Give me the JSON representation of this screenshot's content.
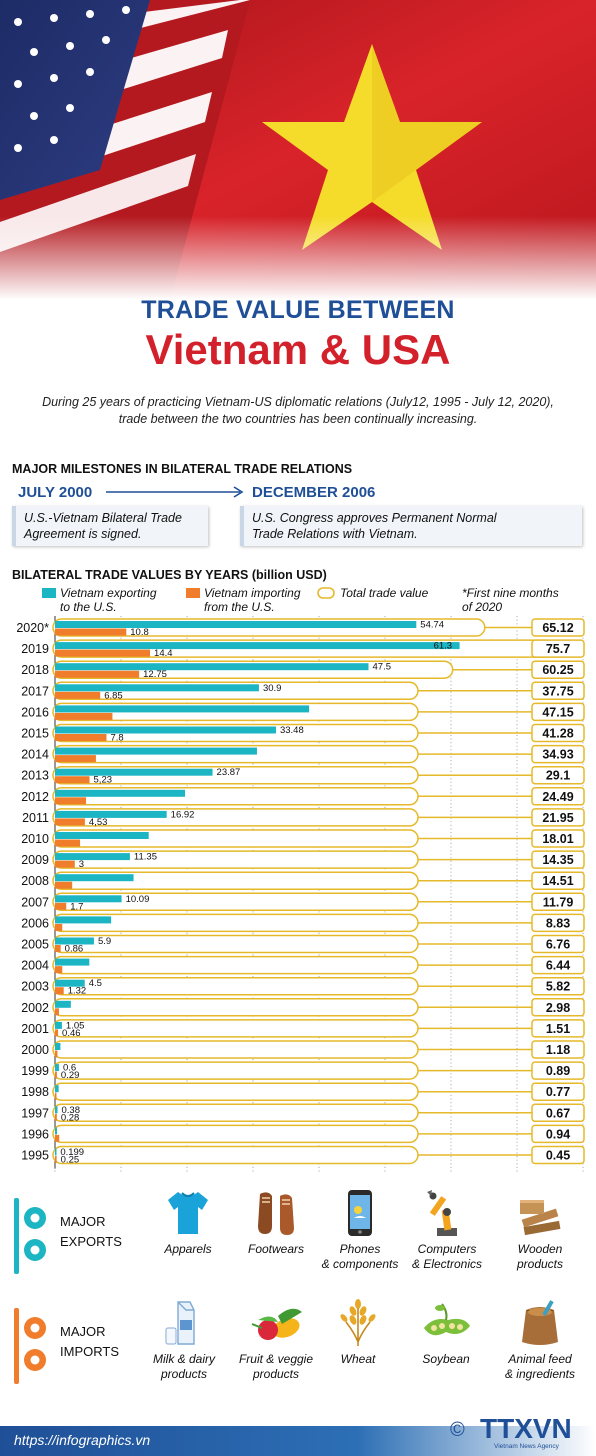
{
  "title": {
    "top": "TRADE VALUE BETWEEN",
    "main": "Vietnam & USA"
  },
  "intro": "During 25 years of practicing Vietnam-US diplomatic relations (July12, 1995 - July 12, 2020), trade between the two countries has been continually increasing.",
  "milestones": {
    "heading": "MAJOR MILESTONES IN BILATERAL TRADE RELATIONS",
    "items": [
      {
        "date": "JULY 2000",
        "text_line1": "U.S.-Vietnam Bilateral Trade",
        "text_line2": "Agreement is signed."
      },
      {
        "date": "DECEMBER 2006",
        "text_line1": "U.S. Congress approves Permanent Normal",
        "text_line2": "Trade Relations with Vietnam."
      }
    ]
  },
  "colors": {
    "exports": "#1cb5c4",
    "imports": "#f07d2b",
    "total": "#e5b92a",
    "title_blue": "#1f4f97",
    "title_red": "#d3212c"
  },
  "chart_data": {
    "type": "bar",
    "title": "BILATERAL TRADE VALUES BY YEARS (billion USD)",
    "orientation": "horizontal",
    "legend": [
      {
        "key": "exports",
        "line1": "Vietnam exporting",
        "line2": "to the U.S."
      },
      {
        "key": "imports",
        "line1": "Vietnam importing",
        "line2": "from the U.S."
      },
      {
        "key": "total",
        "line1": "Total trade value",
        "line2": ""
      }
    ],
    "note": {
      "line1": "*First nine months",
      "line2": "of 2020"
    },
    "categories": [
      "2020*",
      "2019",
      "2018",
      "2017",
      "2016",
      "2015",
      "2014",
      "2013",
      "2012",
      "2011",
      "2010",
      "2009",
      "2008",
      "2007",
      "2006",
      "2005",
      "2004",
      "2003",
      "2002",
      "2001",
      "2000",
      "1999",
      "1998",
      "1997",
      "1996",
      "1995"
    ],
    "series": [
      {
        "name": "Vietnam exporting to the U.S.",
        "key": "exports",
        "values": [
          54.74,
          61.3,
          47.5,
          30.9,
          38.5,
          33.48,
          30.6,
          23.87,
          19.7,
          16.92,
          14.2,
          11.35,
          11.9,
          10.09,
          8.5,
          5.9,
          5.2,
          4.5,
          2.4,
          1.05,
          0.82,
          0.6,
          0.55,
          0.38,
          0.3,
          0.199
        ],
        "labels": [
          "54.74",
          "61.3",
          "47.5",
          "30.9",
          "",
          "33.48",
          "",
          "23.87",
          "",
          "16.92",
          "",
          "11.35",
          "",
          "10.09",
          "",
          "5.9",
          "",
          "4.5",
          "",
          "1.05",
          "",
          "0.6",
          "",
          "0.38",
          "",
          "0.199"
        ]
      },
      {
        "name": "Vietnam importing from the U.S.",
        "key": "imports",
        "values": [
          10.8,
          14.4,
          12.75,
          6.85,
          8.7,
          7.8,
          6.2,
          5.23,
          4.7,
          4.53,
          3.8,
          3.0,
          2.6,
          1.7,
          1.1,
          0.86,
          1.1,
          1.32,
          0.6,
          0.46,
          0.37,
          0.29,
          0.22,
          0.28,
          0.64,
          0.25
        ],
        "labels": [
          "10.8",
          "14.4",
          "12.75",
          "6.85",
          "",
          "7.8",
          "",
          "5,23",
          "",
          "4,53",
          "",
          "3",
          "",
          "1.7",
          "",
          "0.86",
          "",
          "1.32",
          "",
          "0.46",
          "",
          "0.29",
          "",
          "0.28",
          "",
          "0.25"
        ]
      },
      {
        "name": "Total trade value",
        "key": "total",
        "values": [
          65.12,
          75.7,
          60.25,
          37.75,
          47.15,
          41.28,
          34.93,
          29.1,
          24.49,
          21.95,
          18.01,
          14.35,
          14.51,
          11.79,
          8.83,
          6.76,
          6.44,
          5.82,
          2.98,
          1.51,
          1.18,
          0.89,
          0.77,
          0.67,
          0.94,
          0.45
        ],
        "labels": [
          "65.12",
          "75.7",
          "60.25",
          "37.75",
          "47.15",
          "41.28",
          "34.93",
          "29.1",
          "24.49",
          "21.95",
          "18.01",
          "14.35",
          "14.51",
          "11.79",
          "8.83",
          "6.76",
          "6.44",
          "5.82",
          "2.98",
          "1.51",
          "1.18",
          "0.89",
          "0.77",
          "0.67",
          "0.94",
          "0.45"
        ]
      }
    ],
    "xlim": [
      0,
      80
    ],
    "grid": "vertical dotted",
    "legend_placement": "top"
  },
  "exports": {
    "heading_line1": "MAJOR",
    "heading_line2": "EXPORTS",
    "items": [
      {
        "icon": "shirt-icon",
        "line1": "Apparels",
        "line2": ""
      },
      {
        "icon": "shoes-icon",
        "line1": "Footwears",
        "line2": ""
      },
      {
        "icon": "phone-icon",
        "line1": "Phones",
        "line2": "& components"
      },
      {
        "icon": "robot-arm-icon",
        "line1": "Computers",
        "line2": "& Electronics"
      },
      {
        "icon": "wood-icon",
        "line1": "Wooden",
        "line2": "products"
      }
    ]
  },
  "imports": {
    "heading_line1": "MAJOR",
    "heading_line2": "IMPORTS",
    "items": [
      {
        "icon": "milk-icon",
        "line1": "Milk & dairy",
        "line2": "products"
      },
      {
        "icon": "vegetables-icon",
        "line1": "Fruit & veggie",
        "line2": "products"
      },
      {
        "icon": "wheat-icon",
        "line1": "Wheat",
        "line2": ""
      },
      {
        "icon": "soybean-icon",
        "line1": "Soybean",
        "line2": ""
      },
      {
        "icon": "feed-sack-icon",
        "line1": "Animal feed",
        "line2": "& ingredients"
      }
    ]
  },
  "footer": {
    "url": "https://infographics.vn",
    "copyright": "©",
    "logo": "TTXVN",
    "agency": "Vietnam News Agency"
  }
}
